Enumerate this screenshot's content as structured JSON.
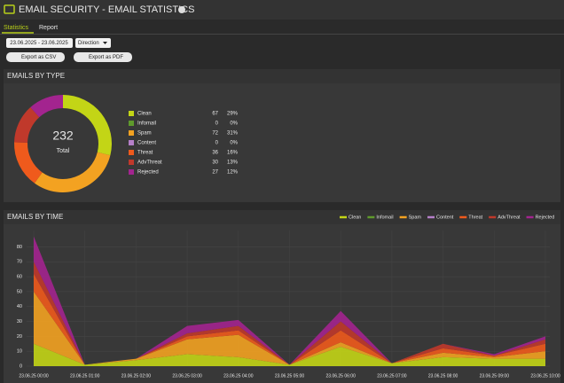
{
  "header": {
    "title": "EMAIL SECURITY - EMAIL STATISTICS"
  },
  "tabs": [
    "Statistics",
    "Report"
  ],
  "controls": {
    "date_range": "23.06.2025 - 23.06.2025",
    "direction": "Direction",
    "export_csv": "Export as CSV",
    "export_pdf": "Export as PDF"
  },
  "chart_data": [
    {
      "type": "pie",
      "title": "EMAILS BY TYPE",
      "total": 232,
      "total_label": "Total",
      "categories": [
        "Clean",
        "Infomail",
        "Spam",
        "Content",
        "Threat",
        "AdvThreat",
        "Rejected"
      ],
      "values": [
        67,
        0,
        72,
        0,
        36,
        30,
        27
      ],
      "shares": [
        {
          "value": 29,
          "label": "29%"
        },
        {
          "value": 0,
          "label": "0%"
        },
        {
          "value": 31,
          "label": "31%"
        },
        {
          "value": 0,
          "label": "0%"
        },
        {
          "value": 16,
          "label": "16%"
        },
        {
          "value": 13,
          "label": "13%"
        },
        {
          "value": 12,
          "label": "12%"
        }
      ],
      "colors": [
        "#c3d516",
        "#5f9a2c",
        "#f3a221",
        "#b57fc8",
        "#ef5a1c",
        "#c0392b",
        "#a3248f"
      ]
    },
    {
      "type": "area",
      "title": "EMAILS BY TIME",
      "stacked": true,
      "grid": true,
      "x": [
        "23.06.25 00:00",
        "23.06.25 01:00",
        "23.06.25 02:00",
        "23.06.25 03:00",
        "23.06.25 04:00",
        "23.06.25 05:00",
        "23.06.25 06:00",
        "23.06.25 07:00",
        "23.06.25 08:00",
        "23.06.25 09:00",
        "23.06.25 10:00"
      ],
      "ylim": [
        0,
        88
      ],
      "yticks": [
        0,
        10,
        20,
        30,
        40,
        50,
        60,
        70,
        80
      ],
      "series": [
        {
          "name": "Clean",
          "color": "#c3d516",
          "values": [
            15,
            1,
            4,
            8,
            6,
            1,
            13,
            2,
            6,
            5,
            5
          ]
        },
        {
          "name": "Infomail",
          "color": "#5f9a2c",
          "values": [
            0,
            0,
            0,
            0,
            0,
            0,
            0,
            0,
            0,
            0,
            0
          ]
        },
        {
          "name": "Spam",
          "color": "#f3a221",
          "values": [
            35,
            0,
            1,
            10,
            15,
            0,
            3,
            0,
            3,
            1,
            5
          ]
        },
        {
          "name": "Content",
          "color": "#b57fc8",
          "values": [
            0,
            0,
            0,
            0,
            0,
            0,
            0,
            0,
            0,
            0,
            0
          ]
        },
        {
          "name": "Threat",
          "color": "#ef5a1c",
          "values": [
            12,
            0,
            0,
            2,
            3,
            0,
            8,
            0,
            3,
            1,
            5
          ]
        },
        {
          "name": "AdvThreat",
          "color": "#c0392b",
          "values": [
            8,
            0,
            0,
            2,
            3,
            0,
            6,
            0,
            3,
            0,
            3
          ]
        },
        {
          "name": "Rejected",
          "color": "#a3248f",
          "values": [
            17,
            0,
            0,
            5,
            4,
            0,
            7,
            0,
            0,
            1,
            2
          ]
        }
      ]
    }
  ]
}
